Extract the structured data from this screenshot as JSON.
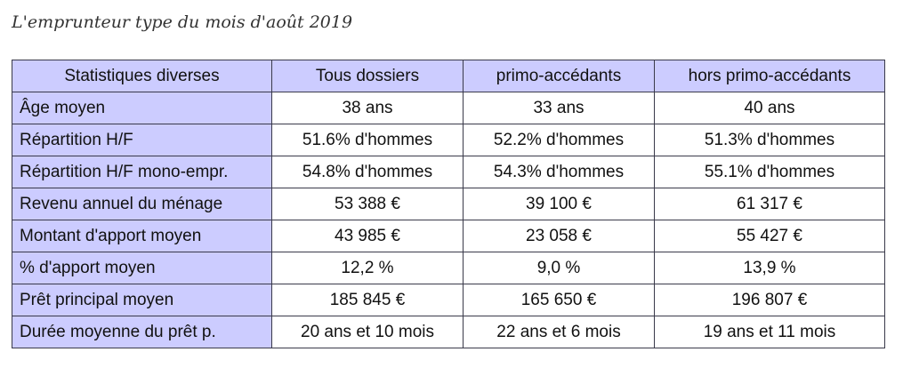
{
  "title": "L'emprunteur type du mois d'août 2019",
  "table": {
    "headers": [
      "Statistiques diverses",
      "Tous dossiers",
      "primo-accédants",
      "hors primo-accédants"
    ],
    "rows": [
      {
        "label": "Âge moyen",
        "values": [
          "38 ans",
          "33 ans",
          "40 ans"
        ]
      },
      {
        "label": "Répartition H/F",
        "values": [
          "51.6% d'hommes",
          "52.2% d'hommes",
          "51.3% d'hommes"
        ]
      },
      {
        "label": "Répartition H/F mono-empr.",
        "values": [
          "54.8% d'hommes",
          "54.3% d'hommes",
          "55.1% d'hommes"
        ]
      },
      {
        "label": "Revenu annuel du ménage",
        "values": [
          "53 388 €",
          "39 100 €",
          "61 317 €"
        ]
      },
      {
        "label": "Montant d'apport moyen",
        "values": [
          "43 985 €",
          "23 058 €",
          "55 427 €"
        ]
      },
      {
        "label": "% d'apport moyen",
        "values": [
          "12,2 %",
          "9,0 %",
          "13,9 %"
        ]
      },
      {
        "label": "Prêt principal moyen",
        "values": [
          "185 845 €",
          "165 650 €",
          "196 807 €"
        ]
      },
      {
        "label": "Durée moyenne du prêt p.",
        "values": [
          "20 ans et 10 mois",
          "22 ans et 6 mois",
          "19 ans et 11 mois"
        ]
      }
    ]
  }
}
